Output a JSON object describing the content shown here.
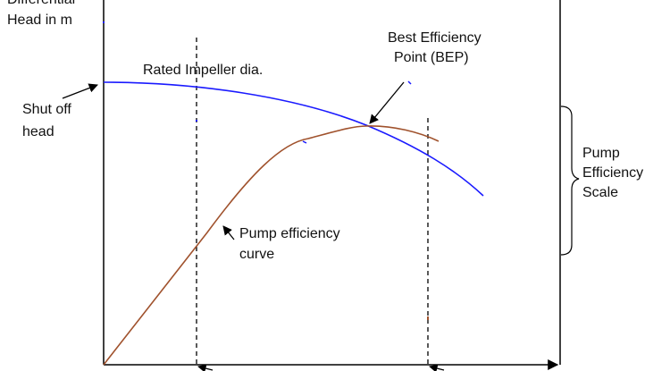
{
  "labels": {
    "y_axis_line1": "Differential",
    "y_axis_line2": "Head in m",
    "rated_impeller": "Rated Impeller dia.",
    "bep_line1": "Best Efficiency",
    "bep_line2": "Point (BEP)",
    "shutoff_line1": "Shut off",
    "shutoff_line2": "head",
    "efficiency_curve_line1": "Pump efficiency",
    "efficiency_curve_line2": "curve",
    "scale_line1": "Pump",
    "scale_line2": "Efficiency",
    "scale_line3": "Scale"
  },
  "colors": {
    "head_curve": "#1a1aff",
    "efficiency_curve": "#a0522d",
    "axes": "#000000",
    "text": "#111111"
  }
}
